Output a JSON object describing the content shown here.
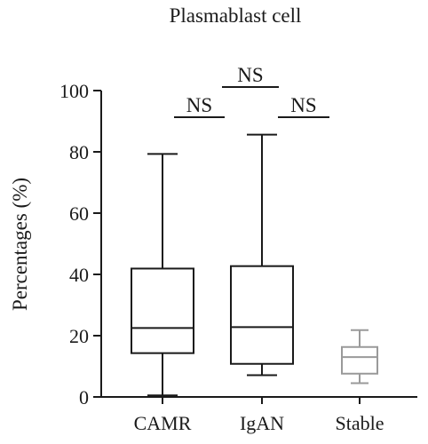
{
  "chart_data": {
    "type": "box",
    "title": "Plasmablast cell",
    "xlabel": "",
    "ylabel": "Percentages (%)",
    "ylim": [
      0,
      100
    ],
    "yticks": [
      0,
      20,
      40,
      60,
      80,
      100
    ],
    "categories": [
      "CAMR",
      "IgAN",
      "Stable"
    ],
    "boxes": [
      {
        "name": "CAMR",
        "min": 0.5,
        "q1": 14.3,
        "median": 22.5,
        "q3": 41.9,
        "max": 79.3,
        "color": "#1a1a1a"
      },
      {
        "name": "IgAN",
        "min": 7.1,
        "q1": 10.8,
        "median": 22.8,
        "q3": 42.7,
        "max": 85.6,
        "color": "#1a1a1a"
      },
      {
        "name": "Stable",
        "min": 4.5,
        "q1": 7.6,
        "median": 13.0,
        "q3": 16.3,
        "max": 21.8,
        "color": "#9a9a9a"
      }
    ],
    "comparisons": [
      {
        "from": "CAMR",
        "to": "IgAN",
        "label": "NS"
      },
      {
        "from": "CAMR",
        "to": "Stable",
        "label": "NS"
      },
      {
        "from": "IgAN",
        "to": "Stable",
        "label": "NS"
      }
    ]
  }
}
